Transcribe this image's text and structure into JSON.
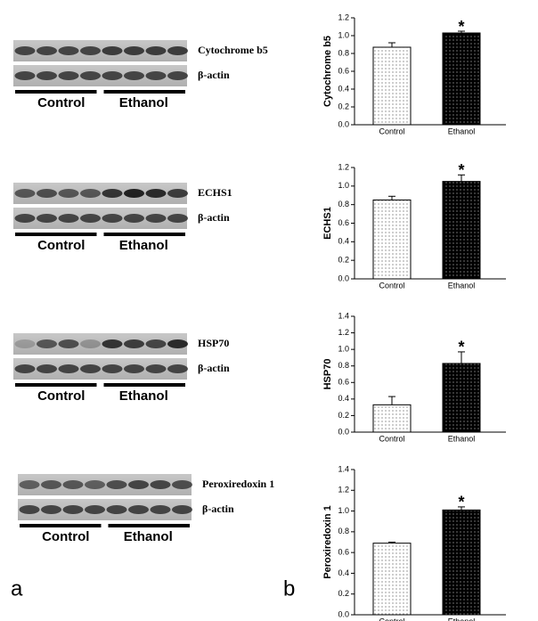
{
  "chart_data": [
    {
      "type": "bar",
      "ylabel": "Cytochrome b5",
      "categories": [
        "Control",
        "Ethanol"
      ],
      "values": [
        0.87,
        1.03
      ],
      "errors": [
        0.05,
        0.02
      ],
      "colors": [
        "#ffffff",
        "#000000"
      ],
      "annotation": "*",
      "ylim": [
        0,
        1.2
      ],
      "yticks": [
        {
          "value": 0,
          "label": "0.0"
        },
        0.2,
        0.4,
        0.6,
        0.8,
        {
          "value": 1,
          "label": "1.0"
        },
        1.2
      ]
    },
    {
      "type": "bar",
      "ylabel": "ECHS1",
      "categories": [
        "Control",
        "Ethanol"
      ],
      "values": [
        0.85,
        1.05
      ],
      "errors": [
        0.04,
        0.07
      ],
      "colors": [
        "#ffffff",
        "#000000"
      ],
      "annotation": "*",
      "ylim": [
        0,
        1.2
      ],
      "yticks": [
        {
          "value": 0,
          "label": "0.0"
        },
        0.2,
        0.4,
        0.6,
        0.8,
        {
          "value": 1,
          "label": "1.0"
        },
        1.2
      ]
    },
    {
      "type": "bar",
      "ylabel": "HSP70",
      "categories": [
        "Control",
        "Ethanol"
      ],
      "values": [
        0.33,
        0.83
      ],
      "errors": [
        0.1,
        0.14
      ],
      "colors": [
        "#ffffff",
        "#000000"
      ],
      "annotation": "*",
      "ylim": [
        0,
        1.4
      ],
      "yticks": [
        {
          "value": 0,
          "label": "0.0"
        },
        0.2,
        0.4,
        0.6,
        0.8,
        {
          "value": 1,
          "label": "1.0"
        },
        1.2,
        1.4
      ]
    },
    {
      "type": "bar",
      "ylabel": "Peroxiredoxin 1",
      "categories": [
        "Control",
        "Ethanol"
      ],
      "values": [
        0.69,
        1.01
      ],
      "errors": [
        0.01,
        0.03
      ],
      "colors": [
        "#ffffff",
        "#000000"
      ],
      "annotation": "*",
      "ylim": [
        0,
        1.4
      ],
      "yticks": [
        {
          "value": 0,
          "label": "0.0"
        },
        0.2,
        0.4,
        0.6,
        0.8,
        {
          "value": 1,
          "label": "1.0"
        },
        1.2,
        1.4
      ]
    }
  ],
  "blots": [
    {
      "protein": "Cytochrome b5",
      "loading": "β-actin",
      "groups": [
        "Control",
        "Ethanol"
      ]
    },
    {
      "protein": "ECHS1",
      "loading": "β-actin",
      "groups": [
        "Control",
        "Ethanol"
      ]
    },
    {
      "protein": "HSP70",
      "loading": "β-actin",
      "groups": [
        "Control",
        "Ethanol"
      ]
    },
    {
      "protein": "Peroxiredoxin 1",
      "loading": "β-actin",
      "groups": [
        "Control",
        "Ethanol"
      ]
    }
  ],
  "panel_labels": [
    "a",
    "b"
  ]
}
